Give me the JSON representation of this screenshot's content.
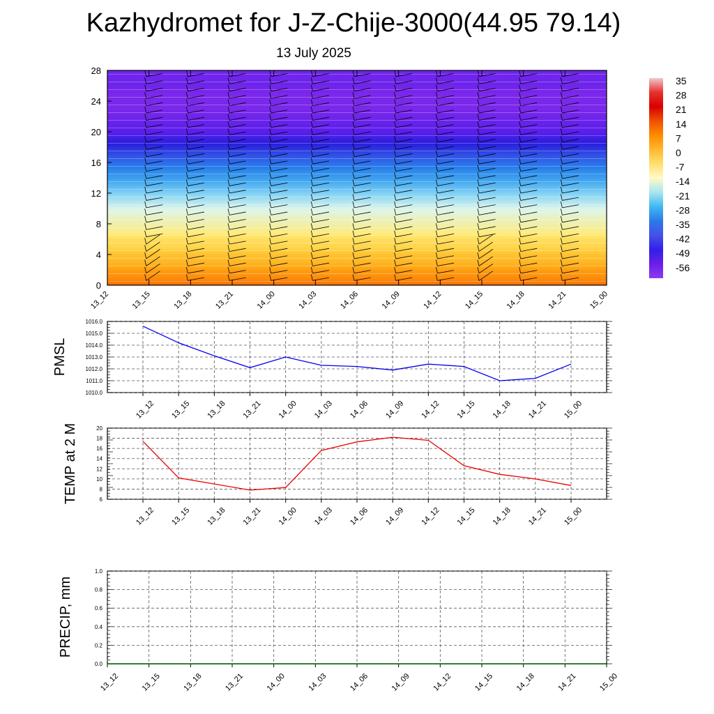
{
  "title": "Kazhydromet for J-Z-Chije-3000(44.95 79.14)",
  "subtitle": "13 July 2025",
  "colors": {
    "pmsl_line": "#0000ee",
    "temp_line": "#ee0000",
    "precip_line": "#006400",
    "grid": "#555555"
  },
  "colorbar": {
    "labels": [
      "35",
      "28",
      "21",
      "14",
      "7",
      "0",
      "-7",
      "-14",
      "-21",
      "-28",
      "-35",
      "-42",
      "-49",
      "-56"
    ],
    "stops": [
      "#f0c8c8",
      "#e8302e",
      "#d80000",
      "#f05000",
      "#ff8c00",
      "#ffb830",
      "#ffe070",
      "#fffac8",
      "#a8e6f0",
      "#40b8f0",
      "#2a7ae8",
      "#4850e8",
      "#3020e8",
      "#6a1ee8",
      "#8c3cf0"
    ]
  },
  "chart_data": [
    {
      "type": "heatmap",
      "title": "",
      "xlabel": "",
      "ylabel": "",
      "x": [
        "13_12",
        "13_15",
        "13_18",
        "13_21",
        "14_00",
        "14_03",
        "14_06",
        "14_09",
        "14_12",
        "14_15",
        "14_18",
        "14_21",
        "15_00"
      ],
      "y_ticks": [
        "0",
        "4",
        "8",
        "12",
        "16",
        "20",
        "24",
        "28"
      ],
      "ylim": [
        0,
        28
      ],
      "levels": [
        0,
        1,
        2,
        3,
        4,
        5,
        6,
        7,
        8,
        9,
        10,
        11,
        12,
        13,
        14,
        15,
        16,
        17,
        18,
        19,
        20,
        21,
        22,
        23,
        24,
        25,
        26,
        27,
        28
      ],
      "values_by_level": [
        14,
        10,
        8,
        4,
        2,
        -2,
        -4,
        -8,
        -10,
        -12,
        -14,
        -18,
        -22,
        -26,
        -30,
        -34,
        -38,
        -42,
        -46,
        -50,
        -54,
        -56,
        -58,
        -60,
        -60,
        -60,
        -58,
        -58,
        -58
      ],
      "wind_barbs": true
    },
    {
      "type": "line",
      "ylabel": "PMSL",
      "x": [
        "13_12",
        "13_15",
        "13_18",
        "13_21",
        "14_00",
        "14_03",
        "14_06",
        "14_09",
        "14_12",
        "14_15",
        "14_18",
        "14_21",
        "15_00"
      ],
      "y_ticks": [
        "1010.0",
        "1011.0",
        "1012.0",
        "1013.0",
        "1014.0",
        "1015.0",
        "1016.0"
      ],
      "ylim": [
        1010,
        1016
      ],
      "series": [
        {
          "values": [
            1015.6,
            1014.2,
            1013.1,
            1012.1,
            1013.0,
            1012.3,
            1012.2,
            1011.9,
            1012.4,
            1012.2,
            1011.0,
            1011.2,
            1012.4
          ]
        }
      ]
    },
    {
      "type": "line",
      "ylabel": "TEMP at 2 M",
      "x": [
        "13_12",
        "13_15",
        "13_18",
        "13_21",
        "14_00",
        "14_03",
        "14_06",
        "14_09",
        "14_12",
        "14_15",
        "14_18",
        "14_21",
        "15_00"
      ],
      "y_ticks": [
        "6",
        "8",
        "10",
        "12",
        "14",
        "16",
        "18",
        "20"
      ],
      "ylim": [
        6,
        20
      ],
      "series": [
        {
          "values": [
            17.4,
            10.2,
            9.0,
            7.8,
            8.3,
            15.6,
            17.3,
            18.2,
            17.6,
            12.6,
            10.9,
            10.0,
            8.7
          ]
        }
      ]
    },
    {
      "type": "line",
      "ylabel": "PRECIP, mm",
      "x": [
        "13_12",
        "13_15",
        "13_18",
        "13_21",
        "14_00",
        "14_03",
        "14_06",
        "14_09",
        "14_12",
        "14_15",
        "14_18",
        "14_21",
        "15_00"
      ],
      "y_ticks": [
        "0.0",
        "0.2",
        "0.4",
        "0.6",
        "0.8",
        "1.0"
      ],
      "ylim": [
        0,
        1
      ],
      "series": [
        {
          "values": [
            0,
            0,
            0,
            0,
            0,
            0,
            0,
            0,
            0,
            0,
            0,
            0,
            0
          ]
        }
      ]
    }
  ]
}
